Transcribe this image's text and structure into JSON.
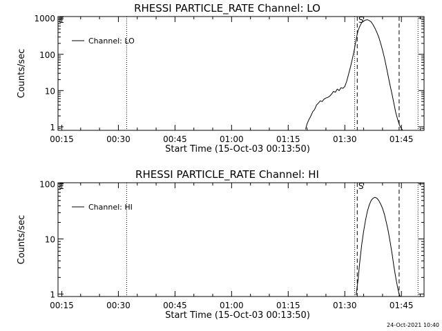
{
  "footer": {
    "timestamp": "24-Oct-2021 10:40"
  },
  "colors": {
    "line": "#000000",
    "background": "#ffffff"
  },
  "chart_data": [
    {
      "type": "line",
      "title": "RHESSI PARTICLE_RATE Channel: LO",
      "xlabel": "Start Time (15-Oct-03 00:13:50)",
      "ylabel": "Counts/sec",
      "yscale": "log",
      "xlim": [
        14.0,
        51.0
      ],
      "ylim": [
        0.8,
        1100
      ],
      "x_ticks": [
        15,
        30,
        45,
        60,
        75,
        90,
        105
      ],
      "x_tick_labels": [
        "00:15",
        "00:30",
        "00:45",
        "01:00",
        "01:15",
        "01:30",
        "01:45"
      ],
      "y_ticks": [
        1,
        10,
        100,
        1000
      ],
      "y_tick_labels": [
        "1",
        "10",
        "100",
        "1000"
      ],
      "legend": {
        "label": "Channel: LO",
        "position": "top-left"
      },
      "vlines": [
        {
          "x": 32.2,
          "style": "dotted"
        },
        {
          "x": 92.6,
          "style": "dotted"
        },
        {
          "x": 93.3,
          "style": "dashed"
        },
        {
          "x": 104.4,
          "style": "dashed"
        },
        {
          "x": 109.4,
          "style": "dotted"
        }
      ],
      "annotations": [
        {
          "text": "S",
          "x": 93.6
        },
        {
          "text": "E",
          "x": 14.2
        }
      ],
      "series": [
        {
          "x": [
            79.6,
            80.0,
            80.5,
            81.0,
            81.5,
            82.0,
            82.5,
            83.0,
            83.5,
            84.0,
            84.5,
            85.0,
            85.5,
            86.0,
            86.5,
            87.0,
            87.5,
            88.0,
            88.5,
            89.0,
            89.5,
            90.0,
            90.5,
            91.0,
            91.5,
            92.0,
            92.5,
            93.0,
            93.5,
            94.0,
            94.5,
            95.0,
            95.5,
            96.0,
            96.5,
            97.0,
            97.5,
            98.0,
            98.5,
            99.0,
            99.5,
            100.0,
            100.5,
            101.0,
            101.5,
            102.0,
            102.5,
            103.0,
            103.5,
            104.0,
            104.5,
            105.0,
            105.3
          ],
          "y": [
            0.85,
            1.2,
            1.6,
            2.0,
            2.6,
            3.0,
            4.0,
            4.5,
            5.2,
            5.0,
            5.8,
            6.2,
            6.5,
            7.0,
            8.0,
            9.5,
            9.0,
            11.0,
            10.0,
            12.0,
            11.5,
            13.0,
            18.0,
            28.0,
            45.0,
            75.0,
            130.0,
            250.0,
            450.0,
            600.0,
            750.0,
            820.0,
            880.0,
            900.0,
            850.0,
            780.0,
            650.0,
            520.0,
            400.0,
            300.0,
            200.0,
            130.0,
            80.0,
            45.0,
            25.0,
            14.0,
            8.0,
            4.5,
            2.5,
            1.6,
            1.1,
            0.9,
            0.8
          ]
        }
      ]
    },
    {
      "type": "line",
      "title": "RHESSI PARTICLE_RATE Channel: HI",
      "xlabel": "Start Time (15-Oct-03 00:13:50)",
      "ylabel": "Counts/sec",
      "yscale": "log",
      "xlim": [
        14.0,
        51.0
      ],
      "ylim": [
        0.9,
        105
      ],
      "x_ticks": [
        15,
        30,
        45,
        60,
        75,
        90,
        105
      ],
      "x_tick_labels": [
        "00:15",
        "00:30",
        "00:45",
        "01:00",
        "01:15",
        "01:30",
        "01:45"
      ],
      "y_ticks": [
        1,
        10,
        100
      ],
      "y_tick_labels": [
        "1",
        "10",
        "100"
      ],
      "legend": {
        "label": "Channel: HI",
        "position": "top-left"
      },
      "vlines": [
        {
          "x": 32.2,
          "style": "dotted"
        },
        {
          "x": 92.6,
          "style": "dotted"
        },
        {
          "x": 93.3,
          "style": "dashed"
        },
        {
          "x": 104.4,
          "style": "dashed"
        },
        {
          "x": 109.4,
          "style": "dotted"
        }
      ],
      "annotations": [
        {
          "text": "S",
          "x": 93.6
        },
        {
          "text": "E",
          "x": 14.2
        }
      ],
      "series": [
        {
          "x": [
            93.0,
            93.5,
            94.0,
            94.5,
            95.0,
            95.5,
            96.0,
            96.5,
            97.0,
            97.5,
            98.0,
            98.5,
            99.0,
            99.5,
            100.0,
            100.5,
            101.0,
            101.5,
            102.0,
            102.5,
            103.0,
            103.5,
            104.0,
            104.4,
            104.7
          ],
          "y": [
            0.95,
            1.8,
            4.0,
            8.0,
            14.0,
            22.0,
            32.0,
            42.0,
            50.0,
            55.0,
            57.0,
            55.0,
            50.0,
            43.0,
            36.0,
            28.0,
            20.0,
            14.0,
            9.0,
            5.5,
            3.2,
            2.0,
            1.3,
            1.0,
            0.9
          ]
        }
      ]
    }
  ]
}
